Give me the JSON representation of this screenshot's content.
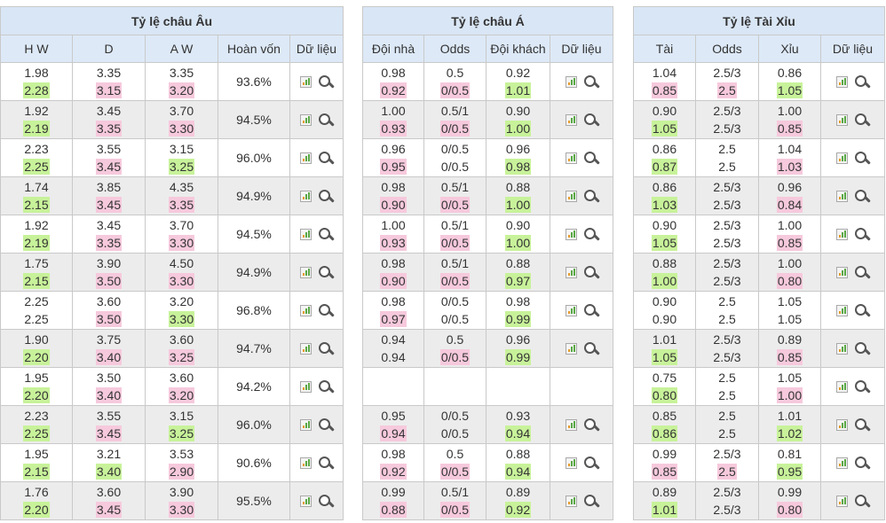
{
  "europe": {
    "title": "Tỷ lệ châu Âu",
    "headers": [
      "H W",
      "D",
      "A W",
      "Hoàn vốn",
      "Dữ liệu"
    ],
    "rows": [
      {
        "hw": [
          "1.98",
          "2.28"
        ],
        "hw_c": [
          "",
          "green"
        ],
        "d": [
          "3.35",
          "3.15"
        ],
        "d_c": [
          "",
          "pink"
        ],
        "aw": [
          "3.35",
          "3.20"
        ],
        "aw_c": [
          "",
          "pink"
        ],
        "ret": "93.6%"
      },
      {
        "hw": [
          "1.92",
          "2.19"
        ],
        "hw_c": [
          "",
          "green"
        ],
        "d": [
          "3.45",
          "3.35"
        ],
        "d_c": [
          "",
          "pink"
        ],
        "aw": [
          "3.70",
          "3.30"
        ],
        "aw_c": [
          "",
          "pink"
        ],
        "ret": "94.5%"
      },
      {
        "hw": [
          "2.23",
          "2.25"
        ],
        "hw_c": [
          "",
          "green"
        ],
        "d": [
          "3.55",
          "3.45"
        ],
        "d_c": [
          "",
          "pink"
        ],
        "aw": [
          "3.15",
          "3.25"
        ],
        "aw_c": [
          "",
          "green"
        ],
        "ret": "96.0%"
      },
      {
        "hw": [
          "1.74",
          "2.15"
        ],
        "hw_c": [
          "",
          "green"
        ],
        "d": [
          "3.85",
          "3.45"
        ],
        "d_c": [
          "",
          "pink"
        ],
        "aw": [
          "4.35",
          "3.35"
        ],
        "aw_c": [
          "",
          "pink"
        ],
        "ret": "94.9%"
      },
      {
        "hw": [
          "1.92",
          "2.19"
        ],
        "hw_c": [
          "",
          "green"
        ],
        "d": [
          "3.45",
          "3.35"
        ],
        "d_c": [
          "",
          "pink"
        ],
        "aw": [
          "3.70",
          "3.30"
        ],
        "aw_c": [
          "",
          "pink"
        ],
        "ret": "94.5%"
      },
      {
        "hw": [
          "1.75",
          "2.15"
        ],
        "hw_c": [
          "",
          "green"
        ],
        "d": [
          "3.90",
          "3.50"
        ],
        "d_c": [
          "",
          "pink"
        ],
        "aw": [
          "4.50",
          "3.30"
        ],
        "aw_c": [
          "",
          "pink"
        ],
        "ret": "94.9%"
      },
      {
        "hw": [
          "2.25",
          "2.25"
        ],
        "hw_c": [
          "",
          ""
        ],
        "d": [
          "3.60",
          "3.50"
        ],
        "d_c": [
          "",
          "pink"
        ],
        "aw": [
          "3.20",
          "3.30"
        ],
        "aw_c": [
          "",
          "green"
        ],
        "ret": "96.8%"
      },
      {
        "hw": [
          "1.90",
          "2.20"
        ],
        "hw_c": [
          "",
          "green"
        ],
        "d": [
          "3.75",
          "3.40"
        ],
        "d_c": [
          "",
          "pink"
        ],
        "aw": [
          "3.60",
          "3.25"
        ],
        "aw_c": [
          "",
          "pink"
        ],
        "ret": "94.7%"
      },
      {
        "hw": [
          "1.95",
          "2.20"
        ],
        "hw_c": [
          "",
          "green"
        ],
        "d": [
          "3.50",
          "3.40"
        ],
        "d_c": [
          "",
          "pink"
        ],
        "aw": [
          "3.60",
          "3.20"
        ],
        "aw_c": [
          "",
          "pink"
        ],
        "ret": "94.2%"
      },
      {
        "hw": [
          "2.23",
          "2.25"
        ],
        "hw_c": [
          "",
          "green"
        ],
        "d": [
          "3.55",
          "3.45"
        ],
        "d_c": [
          "",
          "pink"
        ],
        "aw": [
          "3.15",
          "3.25"
        ],
        "aw_c": [
          "",
          "green"
        ],
        "ret": "96.0%"
      },
      {
        "hw": [
          "1.95",
          "2.15"
        ],
        "hw_c": [
          "",
          "green"
        ],
        "d": [
          "3.21",
          "3.40"
        ],
        "d_c": [
          "",
          "green"
        ],
        "aw": [
          "3.53",
          "2.90"
        ],
        "aw_c": [
          "",
          "pink"
        ],
        "ret": "90.6%"
      },
      {
        "hw": [
          "1.76",
          "2.20"
        ],
        "hw_c": [
          "",
          "green"
        ],
        "d": [
          "3.60",
          "3.45"
        ],
        "d_c": [
          "",
          "pink"
        ],
        "aw": [
          "3.90",
          "3.30"
        ],
        "aw_c": [
          "",
          "pink"
        ],
        "ret": "95.5%"
      }
    ]
  },
  "asia": {
    "title": "Tỷ lệ châu Á",
    "headers": [
      "Đội nhà",
      "Odds",
      "Đội khách",
      "Dữ liệu"
    ],
    "rows": [
      {
        "home": [
          "0.98",
          "0.92"
        ],
        "home_c": [
          "",
          "pink"
        ],
        "odds": [
          "0.5",
          "0/0.5"
        ],
        "odds_c": [
          "",
          "pink"
        ],
        "away": [
          "0.92",
          "1.01"
        ],
        "away_c": [
          "",
          "green"
        ],
        "icons": true
      },
      {
        "home": [
          "1.00",
          "0.93"
        ],
        "home_c": [
          "",
          "pink"
        ],
        "odds": [
          "0.5/1",
          "0/0.5"
        ],
        "odds_c": [
          "",
          "pink"
        ],
        "away": [
          "0.90",
          "1.00"
        ],
        "away_c": [
          "",
          "green"
        ],
        "icons": true
      },
      {
        "home": [
          "0.96",
          "0.95"
        ],
        "home_c": [
          "",
          "pink"
        ],
        "odds": [
          "0/0.5",
          "0/0.5"
        ],
        "odds_c": [
          "",
          ""
        ],
        "away": [
          "0.96",
          "0.98"
        ],
        "away_c": [
          "",
          "green"
        ],
        "icons": true
      },
      {
        "home": [
          "0.98",
          "0.90"
        ],
        "home_c": [
          "",
          "pink"
        ],
        "odds": [
          "0.5/1",
          "0/0.5"
        ],
        "odds_c": [
          "",
          "pink"
        ],
        "away": [
          "0.88",
          "1.00"
        ],
        "away_c": [
          "",
          "green"
        ],
        "icons": true
      },
      {
        "home": [
          "1.00",
          "0.93"
        ],
        "home_c": [
          "",
          "pink"
        ],
        "odds": [
          "0.5/1",
          "0/0.5"
        ],
        "odds_c": [
          "",
          "pink"
        ],
        "away": [
          "0.90",
          "1.00"
        ],
        "away_c": [
          "",
          "green"
        ],
        "icons": true
      },
      {
        "home": [
          "0.98",
          "0.90"
        ],
        "home_c": [
          "",
          "pink"
        ],
        "odds": [
          "0.5/1",
          "0/0.5"
        ],
        "odds_c": [
          "",
          "pink"
        ],
        "away": [
          "0.88",
          "0.97"
        ],
        "away_c": [
          "",
          "green"
        ],
        "icons": true
      },
      {
        "home": [
          "0.98",
          "0.97"
        ],
        "home_c": [
          "",
          "pink"
        ],
        "odds": [
          "0/0.5",
          "0/0.5"
        ],
        "odds_c": [
          "",
          ""
        ],
        "away": [
          "0.98",
          "0.99"
        ],
        "away_c": [
          "",
          "green"
        ],
        "icons": true
      },
      {
        "home": [
          "0.94",
          "0.94"
        ],
        "home_c": [
          "",
          ""
        ],
        "odds": [
          "0.5",
          "0/0.5"
        ],
        "odds_c": [
          "",
          "pink"
        ],
        "away": [
          "0.96",
          "0.99"
        ],
        "away_c": [
          "",
          "green"
        ],
        "icons": true
      },
      {
        "home": [
          "",
          ""
        ],
        "home_c": [
          "",
          ""
        ],
        "odds": [
          "",
          ""
        ],
        "odds_c": [
          "",
          ""
        ],
        "away": [
          "",
          ""
        ],
        "away_c": [
          "",
          ""
        ],
        "icons": false
      },
      {
        "home": [
          "0.95",
          "0.94"
        ],
        "home_c": [
          "",
          "pink"
        ],
        "odds": [
          "0/0.5",
          "0/0.5"
        ],
        "odds_c": [
          "",
          ""
        ],
        "away": [
          "0.93",
          "0.94"
        ],
        "away_c": [
          "",
          "green"
        ],
        "icons": true
      },
      {
        "home": [
          "0.98",
          "0.92"
        ],
        "home_c": [
          "",
          "pink"
        ],
        "odds": [
          "0.5",
          "0/0.5"
        ],
        "odds_c": [
          "",
          "pink"
        ],
        "away": [
          "0.88",
          "0.94"
        ],
        "away_c": [
          "",
          "green"
        ],
        "icons": true
      },
      {
        "home": [
          "0.99",
          "0.88"
        ],
        "home_c": [
          "",
          "pink"
        ],
        "odds": [
          "0.5/1",
          "0/0.5"
        ],
        "odds_c": [
          "",
          "pink"
        ],
        "away": [
          "0.89",
          "0.92"
        ],
        "away_c": [
          "",
          "green"
        ],
        "icons": true
      }
    ]
  },
  "taixiu": {
    "title": "Tỷ lệ Tài Xỉu",
    "headers": [
      "Tài",
      "Odds",
      "Xỉu",
      "Dữ liệu"
    ],
    "rows": [
      {
        "over": [
          "1.04",
          "0.85"
        ],
        "over_c": [
          "",
          "pink"
        ],
        "odds": [
          "2.5/3",
          "2.5"
        ],
        "odds_c": [
          "",
          "pink"
        ],
        "under": [
          "0.86",
          "1.05"
        ],
        "under_c": [
          "",
          "green"
        ]
      },
      {
        "over": [
          "0.90",
          "1.05"
        ],
        "over_c": [
          "",
          "green"
        ],
        "odds": [
          "2.5/3",
          "2.5/3"
        ],
        "odds_c": [
          "",
          ""
        ],
        "under": [
          "1.00",
          "0.85"
        ],
        "under_c": [
          "",
          "pink"
        ]
      },
      {
        "over": [
          "0.86",
          "0.87"
        ],
        "over_c": [
          "",
          "green"
        ],
        "odds": [
          "2.5",
          "2.5"
        ],
        "odds_c": [
          "",
          ""
        ],
        "under": [
          "1.04",
          "1.03"
        ],
        "under_c": [
          "",
          "pink"
        ]
      },
      {
        "over": [
          "0.86",
          "1.03"
        ],
        "over_c": [
          "",
          "green"
        ],
        "odds": [
          "2.5/3",
          "2.5/3"
        ],
        "odds_c": [
          "",
          ""
        ],
        "under": [
          "0.96",
          "0.84"
        ],
        "under_c": [
          "",
          "pink"
        ]
      },
      {
        "over": [
          "0.90",
          "1.05"
        ],
        "over_c": [
          "",
          "green"
        ],
        "odds": [
          "2.5/3",
          "2.5/3"
        ],
        "odds_c": [
          "",
          ""
        ],
        "under": [
          "1.00",
          "0.85"
        ],
        "under_c": [
          "",
          "pink"
        ]
      },
      {
        "over": [
          "0.88",
          "1.00"
        ],
        "over_c": [
          "",
          "green"
        ],
        "odds": [
          "2.5/3",
          "2.5/3"
        ],
        "odds_c": [
          "",
          ""
        ],
        "under": [
          "1.00",
          "0.80"
        ],
        "under_c": [
          "",
          "pink"
        ]
      },
      {
        "over": [
          "0.90",
          "0.90"
        ],
        "over_c": [
          "",
          ""
        ],
        "odds": [
          "2.5",
          "2.5"
        ],
        "odds_c": [
          "",
          ""
        ],
        "under": [
          "1.05",
          "1.05"
        ],
        "under_c": [
          "",
          ""
        ]
      },
      {
        "over": [
          "1.01",
          "1.05"
        ],
        "over_c": [
          "",
          "green"
        ],
        "odds": [
          "2.5/3",
          "2.5/3"
        ],
        "odds_c": [
          "",
          ""
        ],
        "under": [
          "0.89",
          "0.85"
        ],
        "under_c": [
          "",
          "pink"
        ]
      },
      {
        "over": [
          "0.75",
          "0.80"
        ],
        "over_c": [
          "",
          "green"
        ],
        "odds": [
          "2.5",
          "2.5"
        ],
        "odds_c": [
          "",
          ""
        ],
        "under": [
          "1.05",
          "1.00"
        ],
        "under_c": [
          "",
          "pink"
        ]
      },
      {
        "over": [
          "0.85",
          "0.86"
        ],
        "over_c": [
          "",
          "green"
        ],
        "odds": [
          "2.5",
          "2.5"
        ],
        "odds_c": [
          "",
          ""
        ],
        "under": [
          "1.01",
          "1.02"
        ],
        "under_c": [
          "",
          "green"
        ]
      },
      {
        "over": [
          "0.99",
          "0.85"
        ],
        "over_c": [
          "",
          "pink"
        ],
        "odds": [
          "2.5/3",
          "2.5"
        ],
        "odds_c": [
          "",
          "pink"
        ],
        "under": [
          "0.81",
          "0.95"
        ],
        "under_c": [
          "",
          "green"
        ]
      },
      {
        "over": [
          "0.89",
          "1.01"
        ],
        "over_c": [
          "",
          "green"
        ],
        "odds": [
          "2.5/3",
          "2.5/3"
        ],
        "odds_c": [
          "",
          ""
        ],
        "under": [
          "0.99",
          "0.80"
        ],
        "under_c": [
          "",
          "pink"
        ]
      }
    ]
  },
  "icons": {
    "chart": "bar-chart-icon",
    "search": "magnifier-icon"
  },
  "colors": {
    "header_bg": "#dde9f7",
    "row_alt": "#ececec",
    "rise": "#c8f29a",
    "fall": "#f6c9dc",
    "border": "#c9c9c9"
  }
}
